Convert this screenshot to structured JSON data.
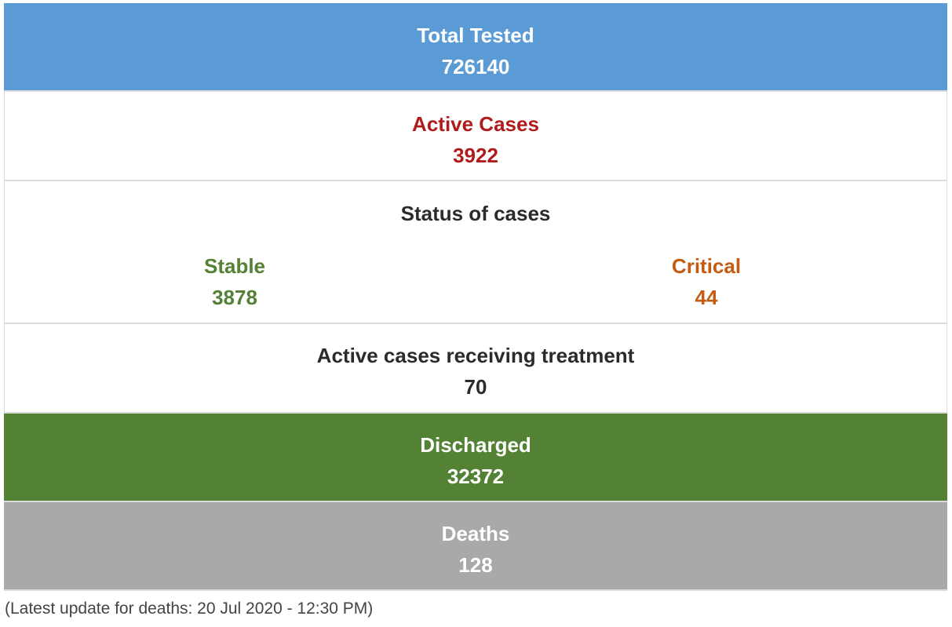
{
  "total_tested": {
    "label": "Total Tested",
    "value": "726140",
    "color": "#5b9bd5"
  },
  "active_cases": {
    "label": "Active Cases",
    "value": "3922",
    "color": "#b01c1c"
  },
  "status_of_cases": {
    "title": "Status of cases",
    "stable": {
      "label": "Stable",
      "value": "3878",
      "color": "#538135"
    },
    "critical": {
      "label": "Critical",
      "value": "44",
      "color": "#c55a11"
    }
  },
  "treatment": {
    "label": "Active cases receiving treatment",
    "value": "70"
  },
  "discharged": {
    "label": "Discharged",
    "value": "32372",
    "color": "#548235"
  },
  "deaths": {
    "label": "Deaths",
    "value": "128",
    "color": "#a9a9a9"
  },
  "footnote": "(Latest update for deaths: 20 Jul 2020 - 12:30 PM)"
}
